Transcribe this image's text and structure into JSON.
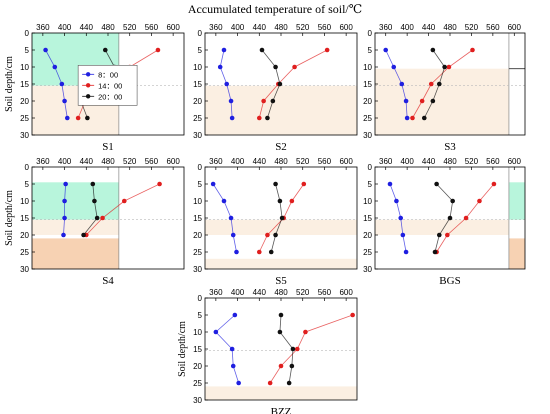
{
  "title": "Accumulated temperature of soil/℃",
  "ylabel": "Soil depth/cm",
  "legend": [
    "8：00",
    "14：00",
    "20：00"
  ],
  "colors": {
    "blue": "#1f1fe0",
    "red": "#e01f1f",
    "black": "#111111",
    "green": "#b8f5dc",
    "peach": "#fbefe2",
    "orange": "#f7d2b3"
  },
  "chart_data": [
    {
      "type": "line",
      "title": "S1",
      "xlim": [
        340,
        620
      ],
      "ylim": [
        0,
        30
      ],
      "xticks": [
        360,
        400,
        440,
        480,
        520,
        560,
        600
      ],
      "yticks": [
        0,
        5,
        10,
        15,
        20,
        25,
        30
      ],
      "legend_placement": "center-right",
      "reversed_y": true,
      "series": [
        {
          "name": "8：00",
          "x": [
            365,
            382,
            395,
            400,
            405
          ],
          "y": [
            5,
            10,
            15,
            20,
            25
          ]
        },
        {
          "name": "14：00",
          "x": [
            572,
            520,
            480,
            438,
            425
          ],
          "y": [
            5,
            10,
            15,
            20,
            25
          ]
        },
        {
          "name": "20：00",
          "x": [
            475,
            492,
            463,
            430,
            442
          ],
          "y": [
            5,
            10,
            15,
            20,
            25
          ]
        }
      ]
    },
    {
      "type": "line",
      "title": "S2",
      "xlim": [
        340,
        620
      ],
      "ylim": [
        0,
        30
      ],
      "xticks": [
        360,
        400,
        440,
        480,
        520,
        560,
        600
      ],
      "yticks": [
        0,
        5,
        10,
        15,
        20,
        25,
        30
      ],
      "reversed_y": true,
      "series": [
        {
          "name": "8：00",
          "x": [
            375,
            368,
            380,
            388,
            390
          ],
          "y": [
            5,
            10,
            15,
            20,
            25
          ]
        },
        {
          "name": "14：00",
          "x": [
            565,
            505,
            475,
            448,
            440
          ],
          "y": [
            5,
            10,
            15,
            20,
            25
          ]
        },
        {
          "name": "20：00",
          "x": [
            445,
            470,
            478,
            465,
            455
          ],
          "y": [
            5,
            10,
            15,
            20,
            25
          ]
        }
      ]
    },
    {
      "type": "line",
      "title": "S3",
      "xlim": [
        340,
        620
      ],
      "ylim": [
        0,
        30
      ],
      "xticks": [
        360,
        400,
        440,
        480,
        520,
        560,
        600
      ],
      "yticks": [
        0,
        5,
        10,
        15,
        20,
        25,
        30
      ],
      "reversed_y": true,
      "series": [
        {
          "name": "8：00",
          "x": [
            360,
            375,
            390,
            398,
            400
          ],
          "y": [
            5,
            10,
            15,
            20,
            25
          ]
        },
        {
          "name": "14：00",
          "x": [
            522,
            478,
            445,
            428,
            410
          ],
          "y": [
            5,
            10,
            15,
            20,
            25
          ]
        },
        {
          "name": "20：00",
          "x": [
            448,
            470,
            460,
            448,
            432
          ],
          "y": [
            5,
            10,
            15,
            20,
            25
          ]
        }
      ]
    },
    {
      "type": "line",
      "title": "S4",
      "xlim": [
        340,
        620
      ],
      "ylim": [
        0,
        30
      ],
      "xticks": [
        360,
        400,
        440,
        480,
        520,
        560,
        600
      ],
      "yticks": [
        0,
        5,
        10,
        15,
        20,
        25,
        30
      ],
      "reversed_y": true,
      "series": [
        {
          "name": "8：00",
          "x": [
            402,
            400,
            400,
            398
          ],
          "y": [
            5,
            10,
            15,
            20
          ]
        },
        {
          "name": "14：00",
          "x": [
            575,
            510,
            470,
            440
          ],
          "y": [
            5,
            10,
            15,
            20
          ]
        },
        {
          "name": "20：00",
          "x": [
            452,
            455,
            460,
            435
          ],
          "y": [
            5,
            10,
            15,
            20
          ]
        }
      ]
    },
    {
      "type": "line",
      "title": "S5",
      "xlim": [
        340,
        620
      ],
      "ylim": [
        0,
        30
      ],
      "xticks": [
        360,
        400,
        440,
        480,
        520,
        560,
        600
      ],
      "yticks": [
        0,
        5,
        10,
        15,
        20,
        25,
        30
      ],
      "reversed_y": true,
      "series": [
        {
          "name": "8：00",
          "x": [
            355,
            375,
            388,
            392,
            398
          ],
          "y": [
            5,
            10,
            15,
            20,
            25
          ]
        },
        {
          "name": "14：00",
          "x": [
            522,
            500,
            485,
            455,
            440
          ],
          "y": [
            5,
            10,
            15,
            20,
            25
          ]
        },
        {
          "name": "20：00",
          "x": [
            470,
            478,
            482,
            470,
            462
          ],
          "y": [
            5,
            10,
            15,
            20,
            25
          ]
        }
      ]
    },
    {
      "type": "line",
      "title": "BGS",
      "xlim": [
        340,
        620
      ],
      "ylim": [
        0,
        30
      ],
      "xticks": [
        360,
        400,
        440,
        480,
        520,
        560,
        600
      ],
      "yticks": [
        0,
        5,
        10,
        15,
        20,
        25,
        30
      ],
      "reversed_y": true,
      "series": [
        {
          "name": "8：00",
          "x": [
            368,
            380,
            388,
            392,
            398
          ],
          "y": [
            5,
            10,
            15,
            20,
            25
          ]
        },
        {
          "name": "14：00",
          "x": [
            562,
            535,
            510,
            475,
            455
          ],
          "y": [
            5,
            10,
            15,
            20,
            25
          ]
        },
        {
          "name": "20：00",
          "x": [
            455,
            485,
            480,
            460,
            452
          ],
          "y": [
            5,
            10,
            15,
            20,
            25
          ]
        }
      ]
    },
    {
      "type": "line",
      "title": "BZZ",
      "xlim": [
        340,
        620
      ],
      "ylim": [
        0,
        30
      ],
      "xticks": [
        360,
        400,
        440,
        480,
        520,
        560,
        600
      ],
      "yticks": [
        0,
        5,
        10,
        15,
        20,
        25,
        30
      ],
      "reversed_y": true,
      "series": [
        {
          "name": "8：00",
          "x": [
            395,
            360,
            390,
            392,
            402
          ],
          "y": [
            5,
            10,
            15,
            20,
            25
          ]
        },
        {
          "name": "14：00",
          "x": [
            612,
            525,
            510,
            480,
            460
          ],
          "y": [
            5,
            10,
            15,
            20,
            25
          ]
        },
        {
          "name": "20：00",
          "x": [
            480,
            478,
            502,
            500,
            495
          ],
          "y": [
            5,
            10,
            15,
            20,
            25
          ]
        }
      ]
    }
  ]
}
